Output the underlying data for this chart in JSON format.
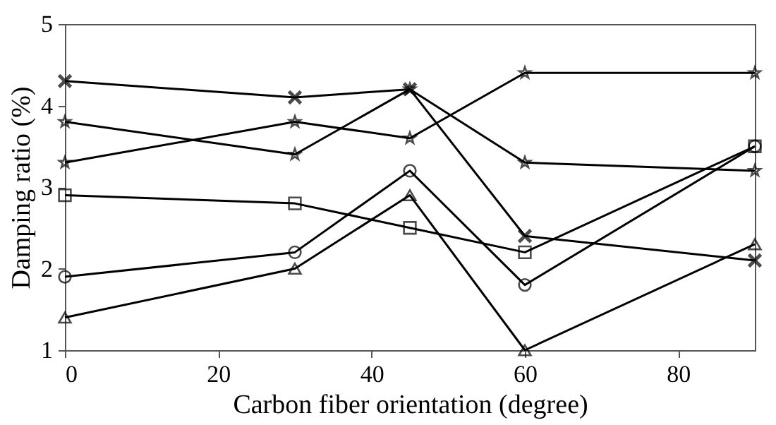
{
  "chart_data": {
    "type": "line",
    "xlabel": "Carbon fiber orientation (degree)",
    "ylabel": "Damping ratio (%)",
    "x": [
      0,
      30,
      45,
      60,
      90
    ],
    "series": [
      {
        "color": "#000000",
        "marker": "cross",
        "values": [
          4.3,
          4.1,
          4.2,
          2.4,
          2.1
        ]
      },
      {
        "color": "#000000",
        "marker": "star",
        "values": [
          3.8,
          3.4,
          4.2,
          3.3,
          3.2
        ]
      },
      {
        "color": "#000000",
        "marker": "star",
        "values": [
          3.3,
          3.8,
          3.6,
          4.4,
          4.4
        ]
      },
      {
        "color": "#000000",
        "marker": "square",
        "values": [
          2.9,
          2.8,
          2.5,
          2.2,
          3.5
        ]
      },
      {
        "color": "#000000",
        "marker": "circle",
        "values": [
          1.9,
          2.2,
          3.2,
          1.8,
          3.5
        ]
      },
      {
        "color": "#000000",
        "marker": "triangle",
        "values": [
          1.4,
          2.0,
          2.9,
          1.0,
          2.3
        ]
      }
    ],
    "xlim": [
      0,
      90
    ],
    "xticks": [
      0,
      20,
      40,
      60,
      80
    ],
    "ylim": [
      1,
      5
    ],
    "yticks": [
      1,
      2,
      3,
      4,
      5
    ],
    "grid": false,
    "line_style": "solid"
  }
}
